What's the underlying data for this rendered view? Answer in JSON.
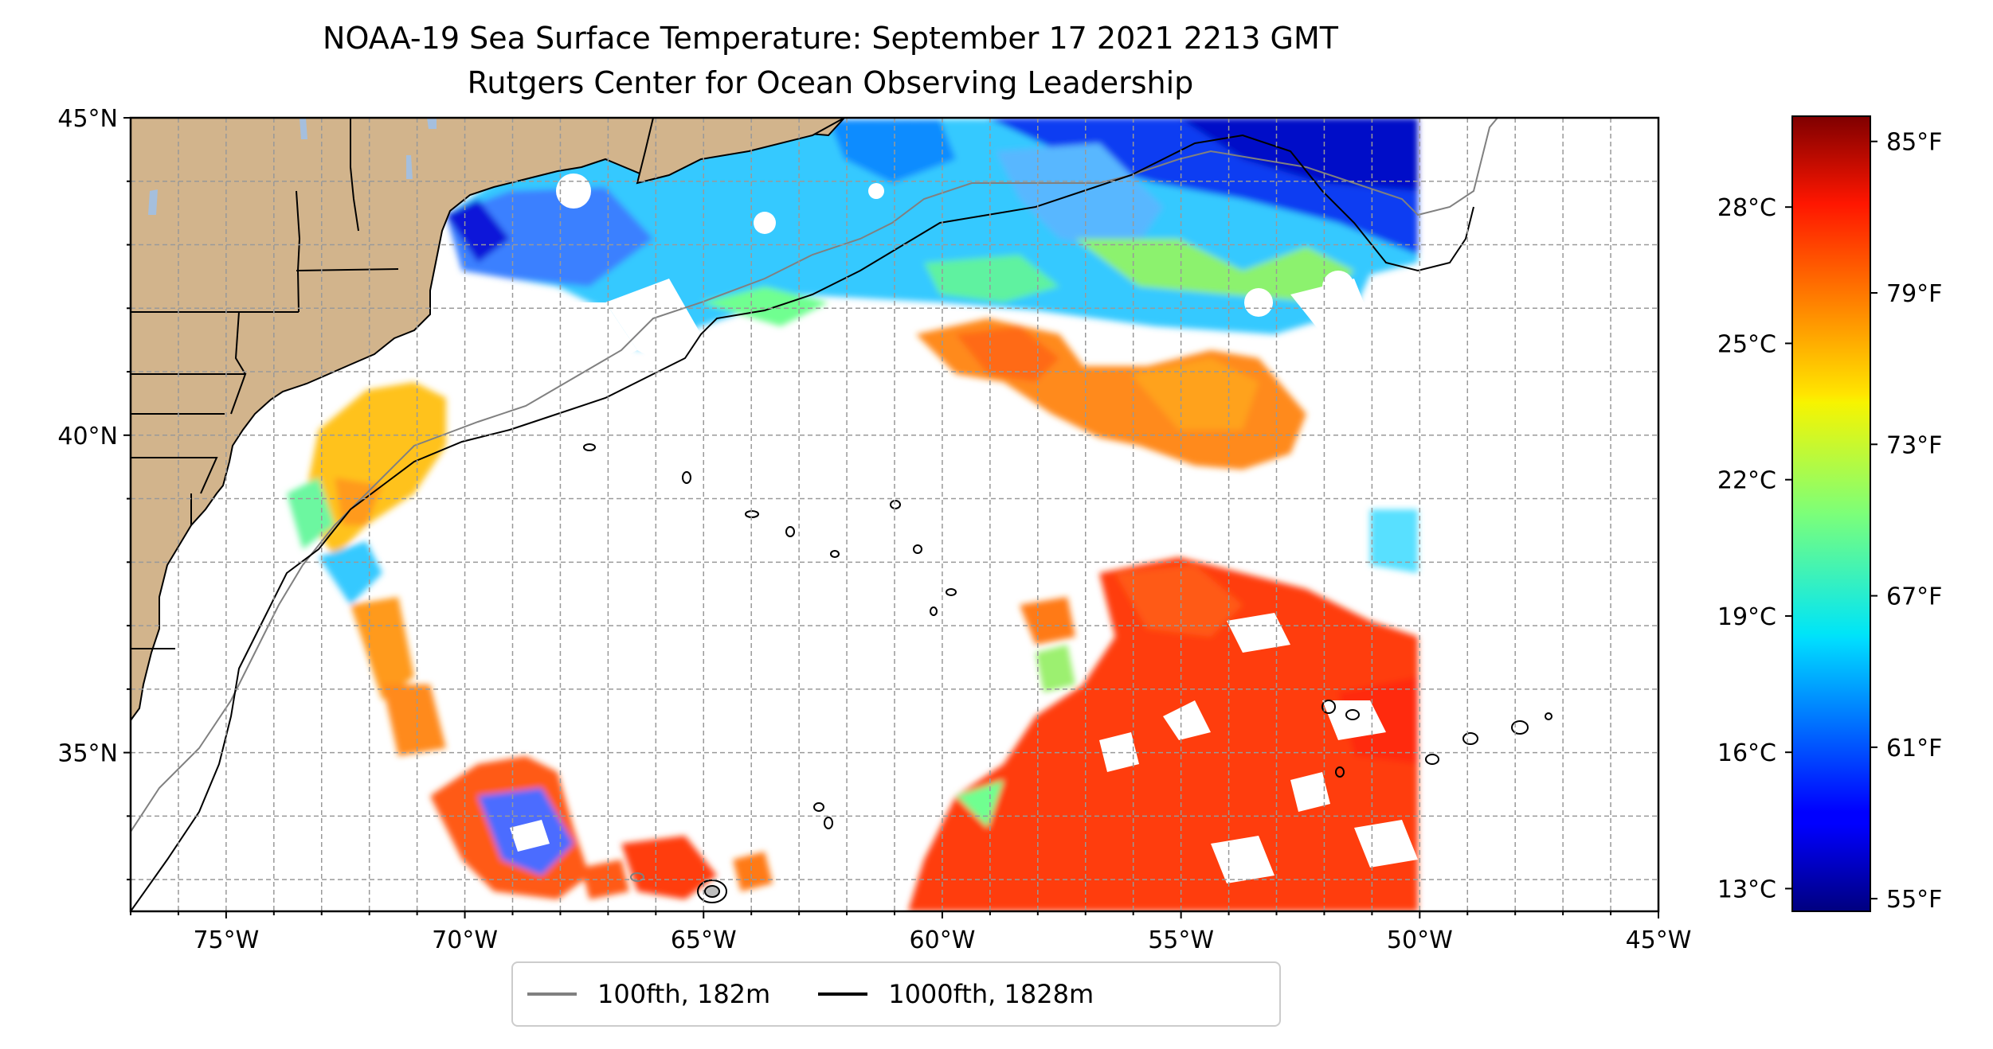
{
  "title": {
    "line1": "NOAA-19 Sea Surface Temperature: September 17 2021 2213 GMT",
    "line2": "Rutgers Center for Ocean Observing Leadership"
  },
  "map": {
    "lon_range": [
      -77,
      -45
    ],
    "lat_range": [
      32.5,
      45
    ],
    "lon_ticks": [
      {
        "value": -75,
        "label": "75°W"
      },
      {
        "value": -70,
        "label": "70°W"
      },
      {
        "value": -65,
        "label": "65°W"
      },
      {
        "value": -60,
        "label": "60°W"
      },
      {
        "value": -55,
        "label": "55°W"
      },
      {
        "value": -50,
        "label": "50°W"
      },
      {
        "value": -45,
        "label": "45°W"
      }
    ],
    "lat_ticks": [
      {
        "value": 45,
        "label": "45°N"
      },
      {
        "value": 40,
        "label": "40°N"
      },
      {
        "value": 35,
        "label": "35°N"
      }
    ],
    "gridlines": true,
    "land_color": "#d2b48c",
    "water_color": "#a5bfdd",
    "cloud_mask_color": "#ffffff"
  },
  "legend": {
    "entries": [
      {
        "label": "100fth, 182m",
        "color": "#808080"
      },
      {
        "label": "1000fth, 1828m",
        "color": "#000000"
      }
    ],
    "position": "bottom-center"
  },
  "colorbar": {
    "colormap": "jet",
    "range_f": [
      54.5,
      86
    ],
    "celsius_ticks": [
      {
        "value": 13,
        "label": "13°C"
      },
      {
        "value": 16,
        "label": "16°C"
      },
      {
        "value": 19,
        "label": "19°C"
      },
      {
        "value": 22,
        "label": "22°C"
      },
      {
        "value": 25,
        "label": "25°C"
      },
      {
        "value": 28,
        "label": "28°C"
      }
    ],
    "fahrenheit_ticks": [
      {
        "value": 55,
        "label": "55°F"
      },
      {
        "value": 61,
        "label": "61°F"
      },
      {
        "value": 67,
        "label": "67°F"
      },
      {
        "value": 73,
        "label": "73°F"
      },
      {
        "value": 79,
        "label": "79°F"
      },
      {
        "value": 85,
        "label": "85°F"
      }
    ]
  }
}
